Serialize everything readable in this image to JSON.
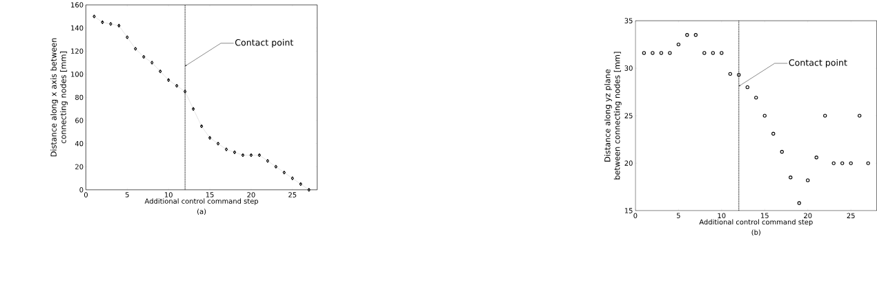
{
  "chart_data": [
    {
      "type": "line",
      "title": "(a)",
      "xlabel": "Additional control command step",
      "ylabel": "Distance along x axis between connecting nodes [mm]",
      "marker": "diamond",
      "line_style": "dotted",
      "x": [
        1,
        2,
        3,
        4,
        5,
        6,
        7,
        8,
        9,
        10,
        11,
        12,
        13,
        14,
        15,
        16,
        17,
        18,
        19,
        20,
        21,
        22,
        23,
        24,
        25,
        26,
        27
      ],
      "series": [
        {
          "color": "#000000",
          "values": [
            150,
            145,
            143.5,
            142,
            132,
            122,
            115,
            110,
            102.5,
            95,
            90,
            85,
            70,
            55,
            45,
            40,
            35,
            32.5,
            30,
            30,
            30,
            25,
            20,
            15,
            10,
            5,
            0
          ]
        }
      ],
      "xlim": [
        0,
        28
      ],
      "ylim": [
        0,
        160
      ],
      "xticks": [
        0,
        5,
        10,
        15,
        20,
        25
      ],
      "yticks": [
        0,
        20,
        40,
        60,
        80,
        100,
        120,
        140,
        160
      ],
      "ref_lines": [
        {
          "axis": "x",
          "value": 12,
          "color": "#000000",
          "line_style": "dotted"
        }
      ],
      "annotations": [
        {
          "text": "Contact point",
          "x": 12,
          "y": 107
        }
      ]
    },
    {
      "type": "scatter",
      "title": "(b)",
      "xlabel": "Additional control command step",
      "ylabel": "Distance along yz plane between connecting nodes [mm]",
      "marker": "circle",
      "x": [
        1,
        2,
        3,
        4,
        5,
        6,
        7,
        8,
        9,
        10,
        11,
        12,
        13,
        14,
        15,
        16,
        17,
        18,
        19,
        20,
        21,
        22,
        23,
        24,
        25,
        26,
        27
      ],
      "series": [
        {
          "color": "#000000",
          "values": [
            31.6,
            31.6,
            31.6,
            31.6,
            32.5,
            33.5,
            33.5,
            31.6,
            31.6,
            31.6,
            29.4,
            29.3,
            28,
            26.9,
            25,
            23.1,
            21.2,
            18.5,
            15.8,
            18.2,
            20.6,
            25,
            20,
            20,
            20,
            25,
            20
          ]
        }
      ],
      "xlim": [
        0,
        28
      ],
      "ylim": [
        15,
        35
      ],
      "xticks": [
        0,
        5,
        10,
        15,
        20,
        25
      ],
      "yticks": [
        15,
        20,
        25,
        30,
        35
      ],
      "ref_lines": [
        {
          "axis": "x",
          "value": 12,
          "color": "#000000",
          "line_style": "dotted"
        }
      ],
      "annotations": [
        {
          "text": "Contact point",
          "x": 12,
          "y": 28.1
        }
      ]
    }
  ]
}
